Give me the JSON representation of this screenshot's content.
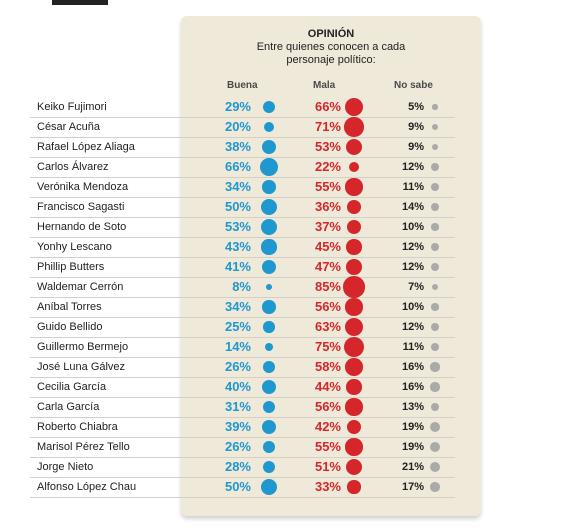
{
  "title": "OPINIÓN",
  "subtitle": "Entre quienes conocen a cada personaje político:",
  "colors": {
    "buena": "#1f97cf",
    "mala": "#d5272b",
    "nosabe": "#aaaaaa",
    "panel": "#efe9d9"
  },
  "chart_data": {
    "type": "table",
    "columns": [
      "Buena",
      "Mala",
      "No sabe"
    ],
    "rows": [
      {
        "name": "Keiko Fujimori",
        "buena": 29,
        "mala": 66,
        "nosabe": 5
      },
      {
        "name": "César Acuña",
        "buena": 20,
        "mala": 71,
        "nosabe": 9
      },
      {
        "name": "Rafael López Aliaga",
        "buena": 38,
        "mala": 53,
        "nosabe": 9
      },
      {
        "name": "Carlos Álvarez",
        "buena": 66,
        "mala": 22,
        "nosabe": 12
      },
      {
        "name": "Verónika Mendoza",
        "buena": 34,
        "mala": 55,
        "nosabe": 11
      },
      {
        "name": "Francisco Sagasti",
        "buena": 50,
        "mala": 36,
        "nosabe": 14
      },
      {
        "name": "Hernando de Soto",
        "buena": 53,
        "mala": 37,
        "nosabe": 10
      },
      {
        "name": "Yonhy Lescano",
        "buena": 43,
        "mala": 45,
        "nosabe": 12
      },
      {
        "name": "Phillip Butters",
        "buena": 41,
        "mala": 47,
        "nosabe": 12
      },
      {
        "name": "Waldemar Cerrón",
        "buena": 8,
        "mala": 85,
        "nosabe": 7
      },
      {
        "name": "Aníbal Torres",
        "buena": 34,
        "mala": 56,
        "nosabe": 10
      },
      {
        "name": "Guido Bellido",
        "buena": 25,
        "mala": 63,
        "nosabe": 12
      },
      {
        "name": "Guillermo Bermejo",
        "buena": 14,
        "mala": 75,
        "nosabe": 11
      },
      {
        "name": "José Luna Gálvez",
        "buena": 26,
        "mala": 58,
        "nosabe": 16
      },
      {
        "name": "Cecilia García",
        "buena": 40,
        "mala": 44,
        "nosabe": 16
      },
      {
        "name": "Carla García",
        "buena": 31,
        "mala": 56,
        "nosabe": 13
      },
      {
        "name": "Roberto Chiabra",
        "buena": 39,
        "mala": 42,
        "nosabe": 19
      },
      {
        "name": "Marisol Pérez Tello",
        "buena": 26,
        "mala": 55,
        "nosabe": 19
      },
      {
        "name": "Jorge Nieto",
        "buena": 28,
        "mala": 51,
        "nosabe": 21
      },
      {
        "name": "Alfonso López Chau",
        "buena": 50,
        "mala": 33,
        "nosabe": 17
      }
    ]
  }
}
